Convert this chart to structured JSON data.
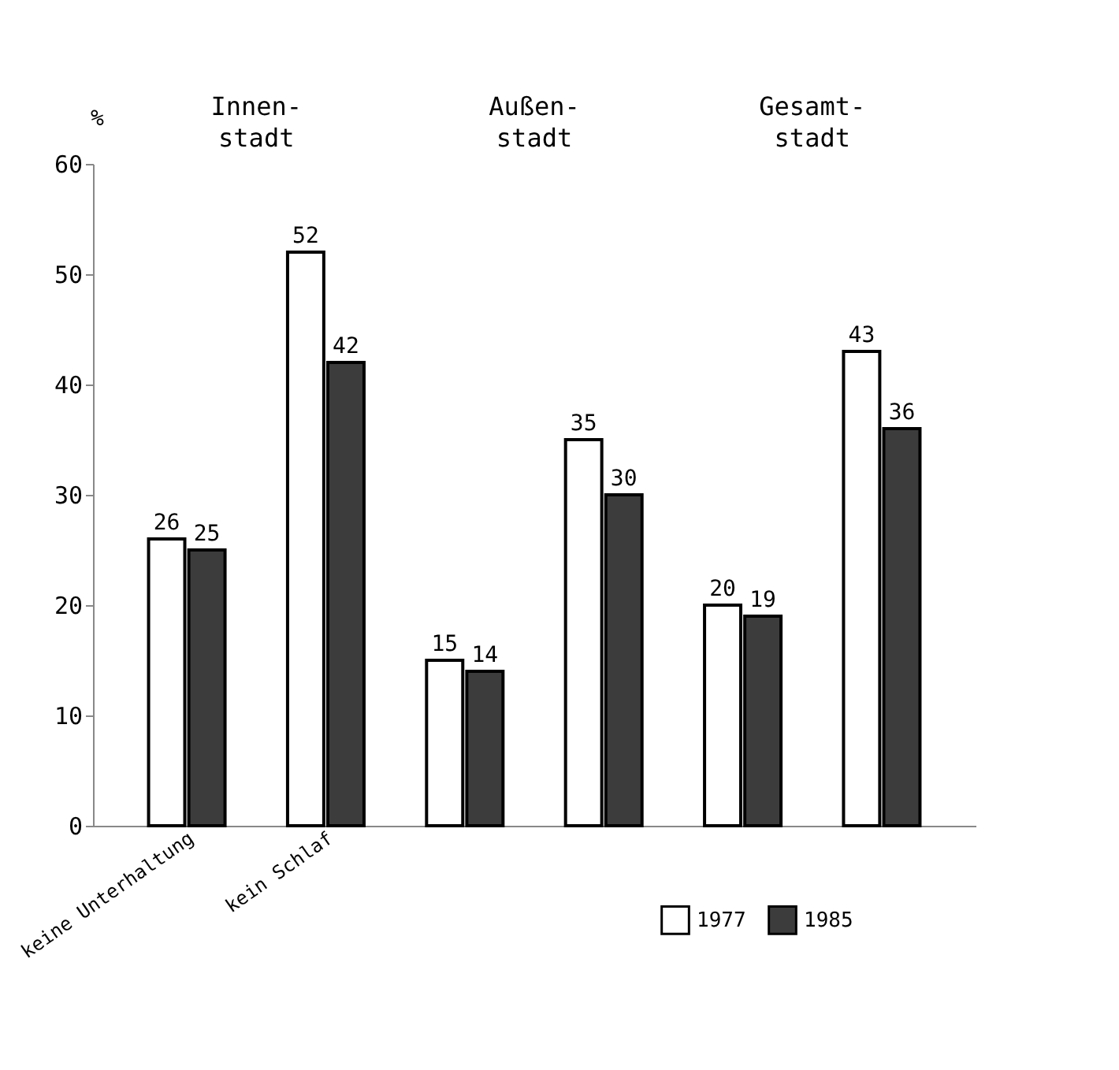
{
  "chart_data": {
    "type": "bar",
    "ylabel": "%",
    "categories": [
      "keine Unterhaltung",
      "kein Schlaf",
      null,
      null,
      null,
      null
    ],
    "series": [
      {
        "name": "1977",
        "color": "#ffffff",
        "values": [
          26,
          52,
          15,
          35,
          20,
          43
        ]
      },
      {
        "name": "1985",
        "color": "#3c3c3c",
        "values": [
          25,
          42,
          14,
          30,
          19,
          36
        ]
      }
    ],
    "annotations": [
      "Innen-\nstadt",
      "Außen-\nstadt",
      "Gesamt-\nstadt"
    ],
    "ylim": [
      0,
      60
    ],
    "yticks": [
      0,
      10,
      20,
      30,
      40,
      50,
      60
    ],
    "data_labels": true,
    "grid": false,
    "legend": "bottom right"
  }
}
